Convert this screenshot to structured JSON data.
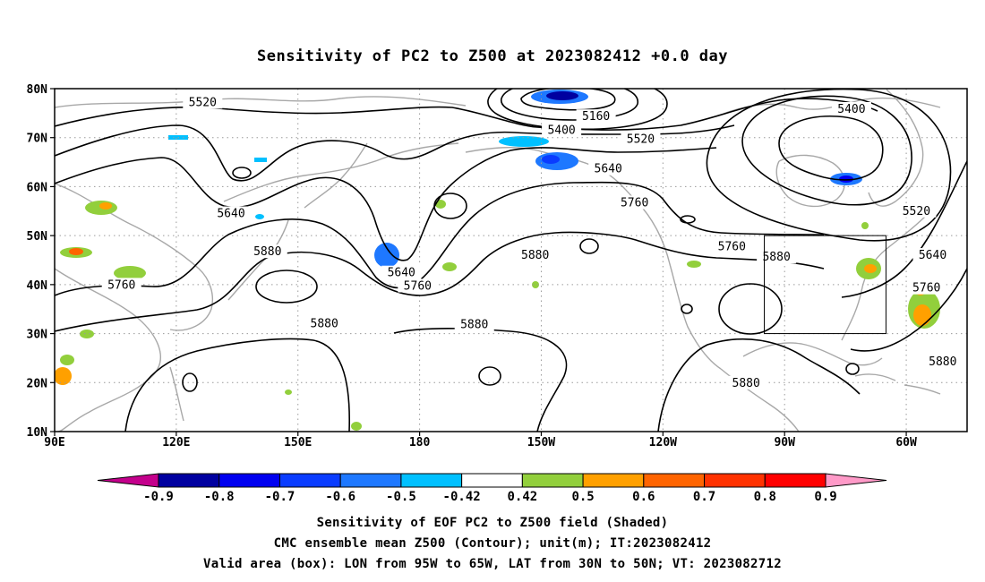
{
  "title": "Sensitivity of PC2 to Z500 at 2023082412 +0.0 day",
  "lat_ticks": [
    {
      "label": "80N",
      "lat": 80
    },
    {
      "label": "70N",
      "lat": 70
    },
    {
      "label": "60N",
      "lat": 60
    },
    {
      "label": "50N",
      "lat": 50
    },
    {
      "label": "40N",
      "lat": 40
    },
    {
      "label": "30N",
      "lat": 30
    },
    {
      "label": "20N",
      "lat": 20
    },
    {
      "label": "10N",
      "lat": 10
    }
  ],
  "lon_ticks": [
    {
      "label": "90E",
      "lon": 90
    },
    {
      "label": "120E",
      "lon": 120
    },
    {
      "label": "150E",
      "lon": 150
    },
    {
      "label": "180",
      "lon": 180
    },
    {
      "label": "150W",
      "lon": 210
    },
    {
      "label": "120W",
      "lon": 240
    },
    {
      "label": "90W",
      "lon": 270
    },
    {
      "label": "60W",
      "lon": 300
    }
  ],
  "map": {
    "lon_range": [
      90,
      315
    ],
    "lat_range": [
      10,
      80
    ],
    "gridlines": "dotted",
    "valid_box": {
      "lon": [
        265,
        295
      ],
      "lat": [
        30,
        50
      ]
    },
    "contour_labels": [
      {
        "text": "5520",
        "lon": 126.5,
        "lat": 77.2
      },
      {
        "text": "5160",
        "lon": 223.5,
        "lat": 74.3
      },
      {
        "text": "5400",
        "lon": 215.0,
        "lat": 71.5
      },
      {
        "text": "5520",
        "lon": 234.5,
        "lat": 69.7
      },
      {
        "text": "5640",
        "lon": 226.5,
        "lat": 63.6
      },
      {
        "text": "5400",
        "lon": 286.5,
        "lat": 75.8
      },
      {
        "text": "5760",
        "lon": 233.0,
        "lat": 56.7
      },
      {
        "text": "5640",
        "lon": 133.5,
        "lat": 54.5
      },
      {
        "text": "5520",
        "lon": 302.5,
        "lat": 55.0
      },
      {
        "text": "5760",
        "lon": 257.0,
        "lat": 47.7
      },
      {
        "text": "5880",
        "lon": 142.5,
        "lat": 46.7
      },
      {
        "text": "5880",
        "lon": 208.5,
        "lat": 46.0
      },
      {
        "text": "5880",
        "lon": 268.0,
        "lat": 45.6
      },
      {
        "text": "5640",
        "lon": 306.5,
        "lat": 46.0
      },
      {
        "text": "5640",
        "lon": 175.5,
        "lat": 42.4
      },
      {
        "text": "5760",
        "lon": 179.5,
        "lat": 39.7
      },
      {
        "text": "5760",
        "lon": 106.5,
        "lat": 39.9
      },
      {
        "text": "5760",
        "lon": 305.0,
        "lat": 39.3
      },
      {
        "text": "5880",
        "lon": 156.5,
        "lat": 32.0
      },
      {
        "text": "5880",
        "lon": 193.5,
        "lat": 31.8
      },
      {
        "text": "5880",
        "lon": 309.0,
        "lat": 24.3
      },
      {
        "text": "5880",
        "lon": 260.5,
        "lat": 19.9
      }
    ]
  },
  "colorbar": {
    "levels": [
      "-0.9",
      "-0.8",
      "-0.7",
      "-0.6",
      "-0.5",
      "-0.42",
      "0.42",
      "0.5",
      "0.6",
      "0.7",
      "0.8",
      "0.9"
    ],
    "colors": [
      "#c4008c",
      "#0000a0",
      "#0000f0",
      "#0a3cff",
      "#1e78ff",
      "#00c0ff",
      "#ffffff",
      "#92cf3c",
      "#ffa000",
      "#ff6400",
      "#ff3200",
      "#ff0000",
      "#ff9ac8"
    ]
  },
  "captions": [
    "Sensitivity of EOF PC2 to Z500 field (Shaded)",
    "CMC ensemble mean Z500 (Contour); unit(m); IT:2023082412",
    "Valid area (box): LON from 95W to 65W, LAT from 30N to 50N; VT: 2023082712"
  ]
}
